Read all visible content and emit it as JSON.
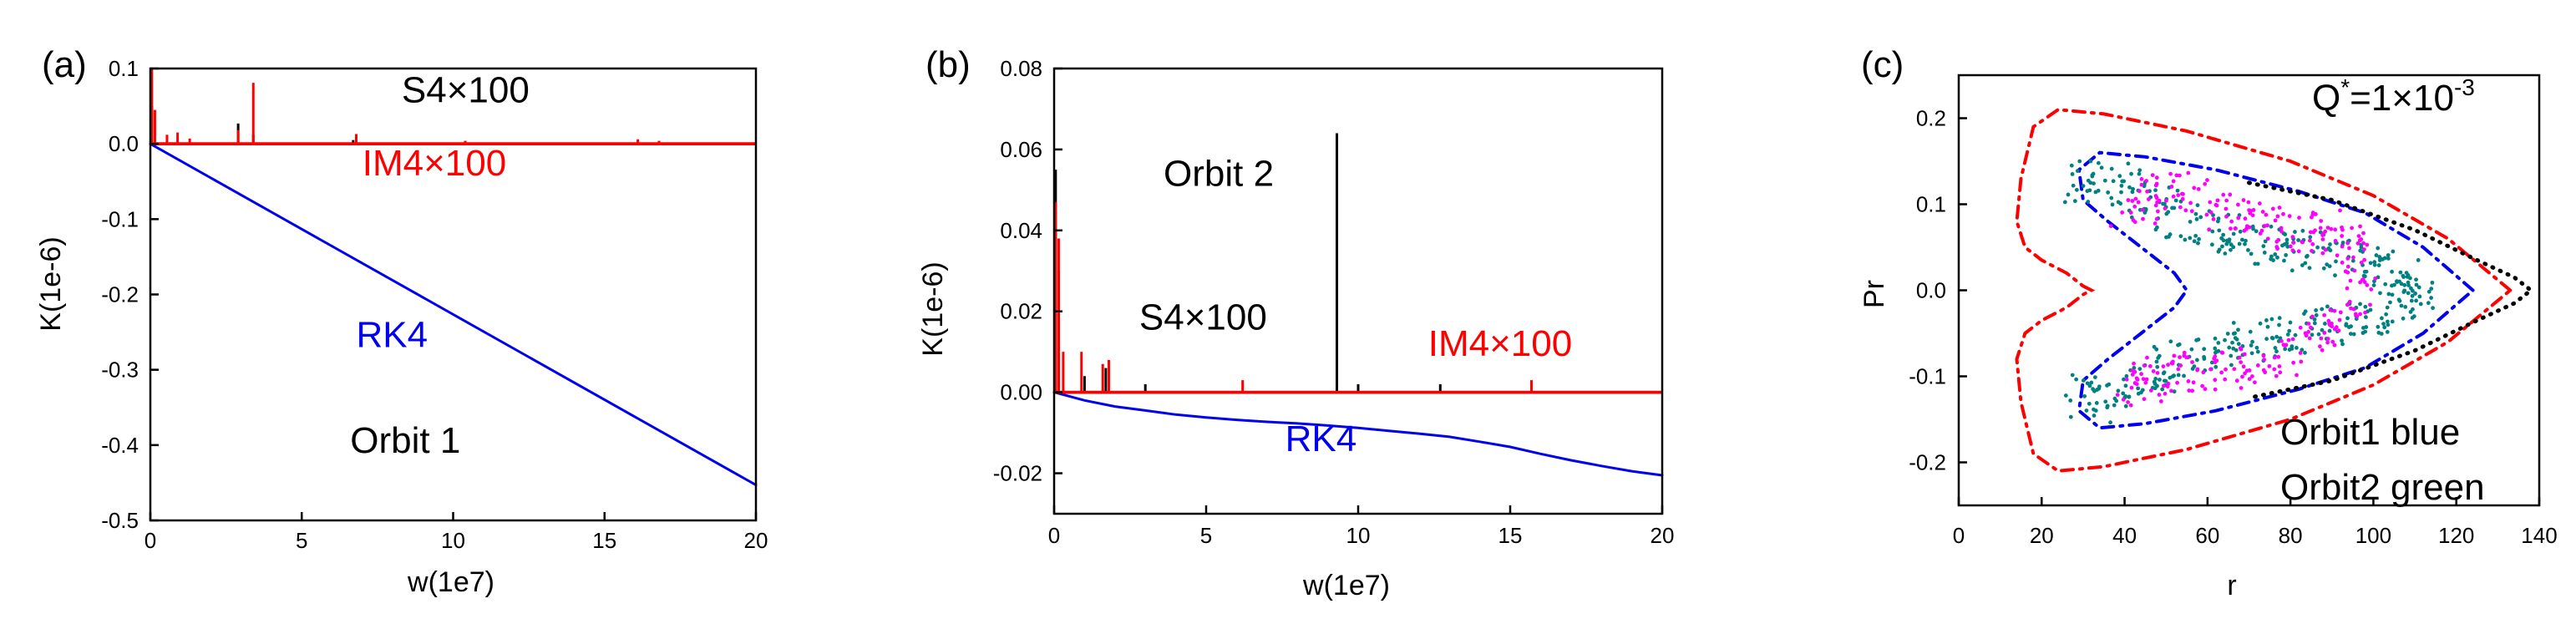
{
  "chart_data": [
    {
      "type": "line",
      "panel_label": "(a)",
      "xlabel": "w(1e7)",
      "ylabel": "K(1e-6)",
      "xlim": [
        0,
        20
      ],
      "ylim": [
        -0.5,
        0.1
      ],
      "xticks": [
        0,
        5,
        10,
        15,
        20
      ],
      "xtick_labels": [
        "0",
        "5",
        "10",
        "15",
        "20"
      ],
      "yticks": [
        0.1,
        0.0,
        -0.1,
        -0.2,
        -0.3,
        -0.4,
        -0.5
      ],
      "ytick_labels": [
        "0.1",
        "0.0",
        "-0.1",
        "-0.2",
        "-0.3",
        "-0.4",
        "-0.5"
      ],
      "annotations": [
        {
          "text": "S4×100",
          "color": "#000000",
          "x": 8.3,
          "y": 0.055
        },
        {
          "text": "IM4×100",
          "color": "#ff0000",
          "x": 7.0,
          "y": -0.042
        },
        {
          "text": "RK4",
          "color": "#0000ee",
          "x": 6.8,
          "y": -0.27
        },
        {
          "text": "Orbit 1",
          "color": "#000000",
          "x": 6.6,
          "y": -0.41
        }
      ],
      "series": [
        {
          "name": "RK4",
          "color": "#0000ee",
          "x": [
            0,
            20
          ],
          "y": [
            0,
            -0.453
          ]
        },
        {
          "name": "S4×100",
          "color": "#000000",
          "spikes": [
            [
              0.05,
              0.05
            ],
            [
              2.9,
              0.027
            ],
            [
              3.4,
              0.012
            ],
            [
              6.7,
              0.005
            ]
          ]
        },
        {
          "name": "IM4×100",
          "color": "#ff0000",
          "spikes": [
            [
              0.05,
              0.1
            ],
            [
              0.15,
              0.045
            ],
            [
              0.55,
              0.012
            ],
            [
              0.9,
              0.015
            ],
            [
              1.3,
              0.007
            ],
            [
              2.9,
              0.018
            ],
            [
              3.4,
              0.081
            ],
            [
              6.8,
              0.013
            ],
            [
              10.4,
              0.004
            ],
            [
              16.1,
              0.006
            ],
            [
              16.8,
              0.004
            ]
          ]
        }
      ]
    },
    {
      "type": "line",
      "panel_label": "(b)",
      "xlabel": "w(1e7)",
      "ylabel": "K(1e-6)",
      "xlim": [
        0,
        20
      ],
      "ylim": [
        -0.03,
        0.08
      ],
      "xticks": [
        0,
        5,
        10,
        15,
        20
      ],
      "xtick_labels": [
        "0",
        "5",
        "10",
        "15",
        "20"
      ],
      "yticks": [
        0.08,
        0.06,
        0.04,
        0.02,
        0.0,
        -0.02
      ],
      "ytick_labels": [
        "0.08",
        "0.06",
        "0.04",
        "0.02",
        "0.00",
        "-0.02"
      ],
      "annotations": [
        {
          "text": "Orbit 2",
          "color": "#000000",
          "x": 3.6,
          "y": 0.051
        },
        {
          "text": "S4×100",
          "color": "#000000",
          "x": 2.8,
          "y": 0.0155
        },
        {
          "text": "IM4×100",
          "color": "#ff0000",
          "x": 12.3,
          "y": 0.009
        },
        {
          "text": "RK4",
          "color": "#0000ee",
          "x": 7.6,
          "y": -0.0145
        }
      ],
      "series": [
        {
          "name": "RK4",
          "color": "#0000ee",
          "x": [
            0,
            1,
            2,
            3,
            4,
            5,
            6,
            7,
            8,
            9,
            10,
            11,
            12,
            13,
            14,
            15,
            16,
            17,
            18,
            19,
            20
          ],
          "y": [
            0,
            -0.002,
            -0.0035,
            -0.0045,
            -0.0055,
            -0.0062,
            -0.0068,
            -0.0073,
            -0.0077,
            -0.0082,
            -0.0088,
            -0.0095,
            -0.0102,
            -0.011,
            -0.0122,
            -0.0135,
            -0.0152,
            -0.0168,
            -0.0182,
            -0.0195,
            -0.0205
          ]
        },
        {
          "name": "S4×100",
          "color": "#000000",
          "spikes": [
            [
              0.05,
              0.055
            ],
            [
              0.15,
              0.03
            ],
            [
              1.0,
              0.004
            ],
            [
              1.7,
              0.006
            ],
            [
              3.0,
              0.002
            ],
            [
              9.3,
              0.064
            ],
            [
              10.0,
              0.002
            ],
            [
              12.7,
              0.002
            ]
          ]
        },
        {
          "name": "IM4×100",
          "color": "#ff0000",
          "spikes": [
            [
              0.05,
              0.047
            ],
            [
              0.15,
              0.038
            ],
            [
              0.3,
              0.01
            ],
            [
              0.9,
              0.01
            ],
            [
              1.6,
              0.007
            ],
            [
              1.8,
              0.008
            ],
            [
              6.2,
              0.003
            ],
            [
              15.7,
              0.003
            ]
          ]
        }
      ]
    },
    {
      "type": "scatter",
      "panel_label": "(c)",
      "xlabel": "r",
      "ylabel": "Pr",
      "xlim": [
        0,
        140
      ],
      "ylim": [
        -0.25,
        0.25
      ],
      "xticks": [
        0,
        20,
        40,
        60,
        80,
        100,
        120,
        140
      ],
      "xtick_labels": [
        "0",
        "20",
        "40",
        "60",
        "80",
        "100",
        "120",
        "140"
      ],
      "yticks": [
        0.2,
        0.1,
        0.0,
        -0.1,
        -0.2
      ],
      "ytick_labels": [
        "0.2",
        "0.1",
        "0.0",
        "-0.1",
        "-0.2"
      ],
      "annotation_q": {
        "prefix": "Q",
        "sup1": "*",
        "mid": "=1×10",
        "sup2": "-3"
      },
      "legend_lines": [
        "Orbit1 blue",
        "Orbit2 green"
      ],
      "series": [
        {
          "name": "red",
          "color": "#ff0000",
          "style": "dashdot",
          "x": [
            133,
            118,
            100,
            80,
            55,
            35,
            24,
            18,
            15,
            14,
            16,
            20,
            26,
            30,
            32,
            30,
            26,
            20,
            16,
            14,
            15,
            18,
            24,
            35,
            55,
            80,
            100,
            118,
            133
          ],
          "y": [
            0,
            0.06,
            0.11,
            0.15,
            0.185,
            0.205,
            0.21,
            0.19,
            0.13,
            0.08,
            0.05,
            0.035,
            0.02,
            0.005,
            0,
            -0.005,
            -0.02,
            -0.035,
            -0.05,
            -0.08,
            -0.13,
            -0.19,
            -0.21,
            -0.205,
            -0.185,
            -0.15,
            -0.11,
            -0.06,
            0
          ]
        },
        {
          "name": "blue",
          "color": "#0000ee",
          "style": "dashdot",
          "x": [
            124,
            112,
            98,
            82,
            62,
            45,
            34,
            29,
            30,
            36,
            44,
            52,
            55,
            52,
            44,
            36,
            30,
            29,
            34,
            45,
            62,
            82,
            98,
            112,
            124
          ],
          "y": [
            0,
            0.05,
            0.09,
            0.115,
            0.14,
            0.155,
            0.16,
            0.14,
            0.105,
            0.08,
            0.05,
            0.02,
            0,
            -0.02,
            -0.05,
            -0.08,
            -0.105,
            -0.14,
            -0.16,
            -0.155,
            -0.14,
            -0.115,
            -0.09,
            -0.05,
            0
          ]
        },
        {
          "name": "black",
          "color": "#000000",
          "style": "dotted",
          "x": [
            70,
            90,
            110,
            125,
            134,
            138,
            134,
            125,
            110,
            90,
            70
          ],
          "y": [
            0.125,
            0.105,
            0.07,
            0.035,
            0.015,
            0,
            -0.015,
            -0.035,
            -0.07,
            -0.105,
            -0.125
          ]
        },
        {
          "name": "Orbit2 green",
          "color": "#008080",
          "style": "scatter-band",
          "x": [
            28,
            36,
            45,
            55,
            65,
            75,
            85,
            95,
            105,
            112,
            105,
            95,
            85,
            75,
            65,
            55,
            45,
            36,
            28
          ],
          "y": [
            0.12,
            0.13,
            0.105,
            0.075,
            0.065,
            0.055,
            0.045,
            0.035,
            0.025,
            0.0,
            -0.025,
            -0.035,
            -0.045,
            -0.055,
            -0.065,
            -0.075,
            -0.105,
            -0.13,
            -0.12
          ]
        },
        {
          "name": "magenta",
          "color": "#ff00ff",
          "style": "scatter-band",
          "x": [
            40,
            50,
            60,
            70,
            80,
            90,
            98,
            92,
            82,
            70,
            58,
            48,
            40
          ],
          "y": [
            0.085,
            0.12,
            0.1,
            0.08,
            0.065,
            0.07,
            0.03,
            -0.04,
            -0.075,
            -0.09,
            -0.095,
            -0.1,
            -0.12
          ]
        }
      ]
    }
  ]
}
